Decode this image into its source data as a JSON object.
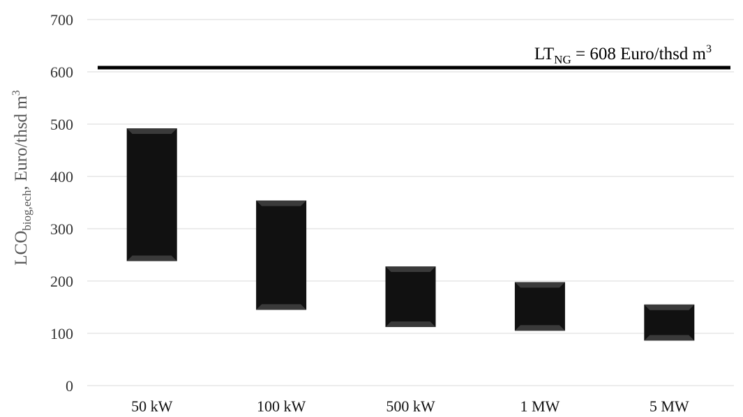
{
  "chart_data": {
    "type": "bar",
    "subtype": "floating-range",
    "categories": [
      "50 kW",
      "100 kW",
      "500 kW",
      "1 MW",
      "5 MW"
    ],
    "series": [
      {
        "low": [
          238,
          145,
          112,
          105,
          86
        ],
        "high": [
          492,
          354,
          228,
          198,
          155
        ]
      }
    ],
    "ylim": [
      0,
      700
    ],
    "yticks": [
      0,
      100,
      200,
      300,
      400,
      500,
      600,
      700
    ],
    "ylabel": {
      "main": "LCO",
      "sub": "biog,ech",
      "rest": ", Euro/thsd m",
      "sup": "3"
    },
    "reference_line": {
      "value": 608,
      "label_main": "LT",
      "label_sub": "NG",
      "label_rest": " = 608 Euro/thsd m",
      "label_sup": "3"
    },
    "grid": true,
    "colors": {
      "bar": "#111111",
      "bevel": "#3a3a3a",
      "line": "#000000",
      "grid": "#d9d9d9"
    }
  }
}
